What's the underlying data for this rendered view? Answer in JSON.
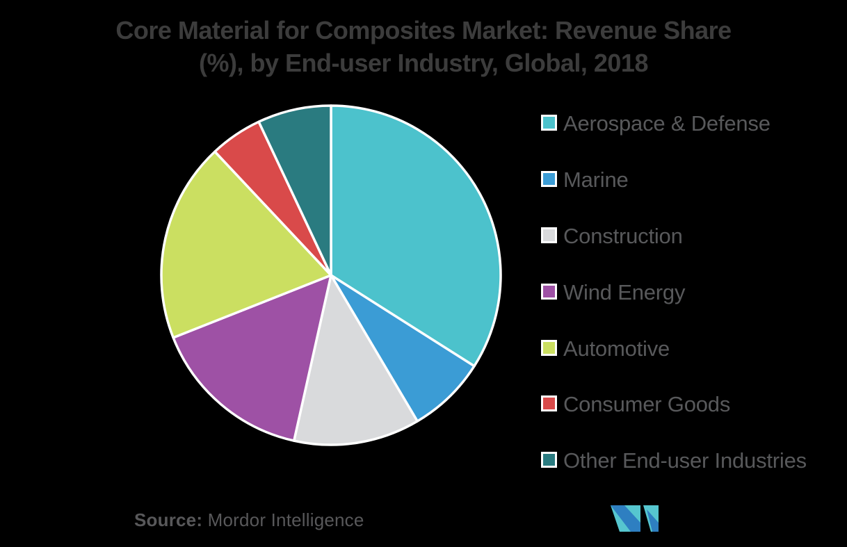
{
  "header": {
    "line1": "Core Material for Composites Market: Revenue Share",
    "line2": "(%), by End-user Industry, Global, 2018"
  },
  "chart_data": {
    "type": "pie",
    "title": "Core Material for Composites Market: Revenue Share (%), by End-user Industry, Global, 2018",
    "unit": "%",
    "categories": [
      "Aerospace & Defense",
      "Marine",
      "Construction",
      "Wind Energy",
      "Automotive",
      "Consumer Goods",
      "Other End-user Industries"
    ],
    "values": [
      34,
      7.5,
      12,
      15.5,
      19,
      5,
      7
    ],
    "colors": [
      "#4CC2CC",
      "#3B9CD5",
      "#D9DADC",
      "#9E51A5",
      "#CBDF61",
      "#D94A4A",
      "#2A7B80"
    ],
    "start_angle": 0,
    "direction": "clockwise",
    "legend_position": "right",
    "data_labels": "none",
    "slice_border_color": "#FFFFFF",
    "background_color": "#000000",
    "title_color": "#3C3C3C",
    "legend_text_color": "#58595B"
  },
  "source": {
    "prefix": "Source:",
    "name": " Mordor Intelligence"
  },
  "logo": {
    "name": "Mordor Intelligence",
    "teal": "#56C6CF",
    "blue": "#2E7FC1"
  }
}
